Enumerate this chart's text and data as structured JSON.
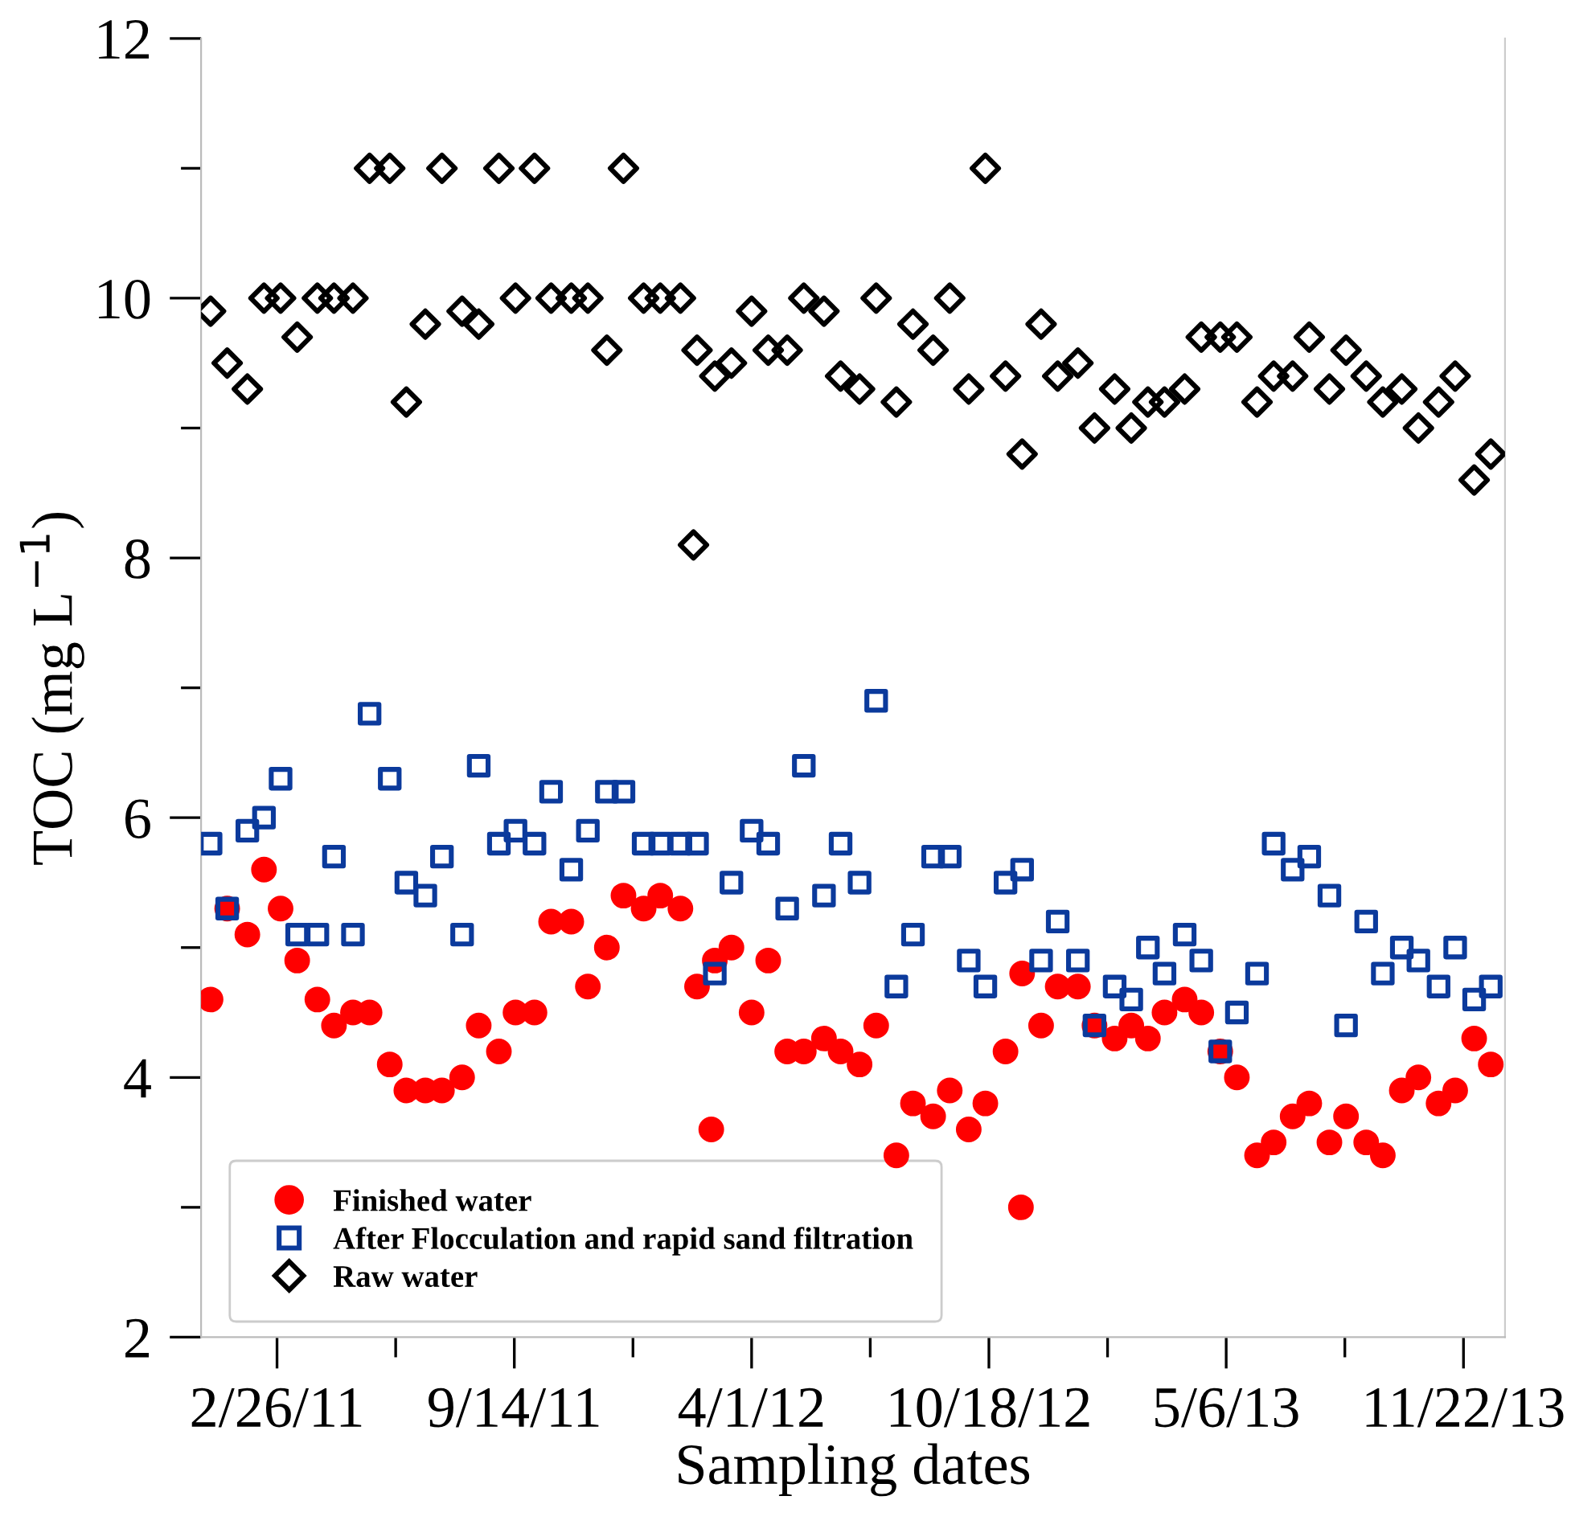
{
  "chart_data": {
    "type": "scatter",
    "xlabel": "Sampling dates",
    "ylabel": "TOC (mg L$^{−1}$)",
    "xlim": [
      "2010-12-24",
      "2013-12-27"
    ],
    "ylim": [
      2,
      12
    ],
    "xticks": [
      {
        "value": "2011-02-26",
        "label": "2/26/11"
      },
      {
        "value": "2011-06-06",
        "label": null
      },
      {
        "value": "2011-09-14",
        "label": "9/14/11"
      },
      {
        "value": "2011-12-23",
        "label": null
      },
      {
        "value": "2012-04-01",
        "label": "4/1/12"
      },
      {
        "value": "2012-07-10",
        "label": null
      },
      {
        "value": "2012-10-18",
        "label": "10/18/12"
      },
      {
        "value": "2013-01-26",
        "label": null
      },
      {
        "value": "2013-05-06",
        "label": "5/6/13"
      },
      {
        "value": "2013-08-14",
        "label": null
      },
      {
        "value": "2013-11-22",
        "label": "11/22/13"
      }
    ],
    "yticks": [
      2,
      {
        "value": 3,
        "label": null
      },
      4,
      {
        "value": 5,
        "label": null
      },
      6,
      {
        "value": 7,
        "label": null
      },
      8,
      {
        "value": 9,
        "label": null
      },
      10,
      {
        "value": 11,
        "label": null
      },
      12
    ],
    "grid": false,
    "legend": "bottom left",
    "series": [
      {
        "name": "Finished water",
        "color": "#ff0000",
        "marker": "circle",
        "x": [
          "2011-01-01",
          "2011-01-15",
          "2011-02-01",
          "2011-02-15",
          "2011-03-01",
          "2011-03-15",
          "2011-04-01",
          "2011-04-15",
          "2011-05-01",
          "2011-05-15",
          "2011-06-01",
          "2011-06-15",
          "2011-07-01",
          "2011-07-15",
          "2011-08-01",
          "2011-08-15",
          "2011-09-01",
          "2011-09-15",
          "2011-10-01",
          "2011-10-15",
          "2011-11-01",
          "2011-11-15",
          "2011-12-01",
          "2011-12-15",
          "2012-01-01",
          "2012-01-15",
          "2012-02-01",
          "2012-02-15",
          "2012-03-01",
          "2012-03-15",
          "2012-04-01",
          "2012-04-15",
          "2012-05-01",
          "2012-05-15",
          "2012-06-01",
          "2012-06-15",
          "2012-07-01",
          "2012-07-15",
          "2012-08-01",
          "2012-08-15",
          "2012-09-01",
          "2012-09-15",
          "2012-10-01",
          "2012-10-15",
          "2012-11-01",
          "2012-11-15",
          "2012-12-01",
          "2012-12-15",
          "2013-01-01",
          "2013-01-15",
          "2013-02-01",
          "2013-02-15",
          "2013-03-01",
          "2013-03-15",
          "2013-04-01",
          "2013-04-15",
          "2013-05-01",
          "2013-05-15",
          "2013-06-01",
          "2013-06-15",
          "2013-07-01",
          "2013-07-15",
          "2013-08-01",
          "2013-08-15",
          "2013-09-01",
          "2013-09-15",
          "2013-10-01",
          "2013-10-15",
          "2013-11-01",
          "2013-11-15",
          "2013-12-01",
          "2013-12-15",
          "2012-02-27",
          "2012-11-14"
        ],
        "values": [
          4.6,
          5.3,
          5.1,
          5.6,
          5.3,
          4.9,
          4.6,
          4.4,
          4.5,
          4.5,
          4.1,
          3.9,
          3.9,
          3.9,
          4.0,
          4.4,
          4.2,
          4.5,
          4.5,
          5.2,
          5.2,
          4.7,
          5.0,
          5.4,
          5.3,
          5.4,
          5.3,
          4.7,
          4.9,
          5.0,
          4.5,
          4.9,
          4.2,
          4.2,
          4.3,
          4.2,
          4.1,
          4.4,
          3.4,
          3.8,
          3.7,
          3.9,
          3.6,
          3.8,
          4.2,
          4.8,
          4.4,
          4.7,
          4.7,
          4.4,
          4.3,
          4.4,
          4.3,
          4.5,
          4.6,
          4.5,
          4.2,
          4.0,
          3.4,
          3.5,
          3.7,
          3.8,
          3.5,
          3.7,
          3.5,
          3.4,
          3.9,
          4.0,
          3.8,
          3.9,
          4.3,
          4.1,
          3.6,
          3.0
        ]
      },
      {
        "name": "After Flocculation and rapid sand filtration",
        "color": "#0b3a9c",
        "marker": "square",
        "x": [
          "2011-01-01",
          "2011-01-15",
          "2011-02-01",
          "2011-02-15",
          "2011-03-01",
          "2011-03-15",
          "2011-04-01",
          "2011-04-15",
          "2011-05-01",
          "2011-05-15",
          "2011-06-01",
          "2011-06-15",
          "2011-07-01",
          "2011-07-15",
          "2011-08-01",
          "2011-08-15",
          "2011-09-01",
          "2011-09-15",
          "2011-10-01",
          "2011-10-15",
          "2011-11-01",
          "2011-11-15",
          "2011-12-01",
          "2011-12-15",
          "2012-01-01",
          "2012-01-15",
          "2012-02-01",
          "2012-02-15",
          "2012-03-01",
          "2012-03-15",
          "2012-04-01",
          "2012-04-15",
          "2012-05-01",
          "2012-05-15",
          "2012-06-01",
          "2012-06-15",
          "2012-07-01",
          "2012-07-15",
          "2012-08-01",
          "2012-08-15",
          "2012-09-01",
          "2012-09-15",
          "2012-10-01",
          "2012-10-15",
          "2012-11-01",
          "2012-11-15",
          "2012-12-01",
          "2012-12-15",
          "2013-01-01",
          "2013-01-15",
          "2013-02-01",
          "2013-02-15",
          "2013-03-01",
          "2013-03-15",
          "2013-04-01",
          "2013-04-15",
          "2013-05-01",
          "2013-05-15",
          "2013-06-01",
          "2013-06-15",
          "2013-07-01",
          "2013-07-15",
          "2013-08-01",
          "2013-08-15",
          "2013-09-01",
          "2013-09-15",
          "2013-10-01",
          "2013-10-15",
          "2013-11-01",
          "2013-11-15",
          "2013-12-01",
          "2013-12-15"
        ],
        "values": [
          5.8,
          5.3,
          5.9,
          6.0,
          6.3,
          5.1,
          5.1,
          5.7,
          5.1,
          6.8,
          6.3,
          5.5,
          5.4,
          5.7,
          5.1,
          6.4,
          5.8,
          5.9,
          5.8,
          6.2,
          5.6,
          5.9,
          6.2,
          6.2,
          5.8,
          5.8,
          5.8,
          5.8,
          4.8,
          5.5,
          5.9,
          5.8,
          5.3,
          6.4,
          5.4,
          5.8,
          5.5,
          6.9,
          4.7,
          5.1,
          5.7,
          5.7,
          4.9,
          4.7,
          5.5,
          5.6,
          4.9,
          5.2,
          4.9,
          4.4,
          4.7,
          4.6,
          5.0,
          4.8,
          5.1,
          4.9,
          4.2,
          4.5,
          4.8,
          5.8,
          5.6,
          5.7,
          5.4,
          4.4,
          5.2,
          4.8,
          5.0,
          4.9,
          4.7,
          5.0,
          4.6,
          4.7
        ]
      },
      {
        "name": "Raw water",
        "color": "#000000",
        "marker": "diamond",
        "x": [
          "2011-01-01",
          "2011-01-15",
          "2011-02-01",
          "2011-02-15",
          "2011-03-01",
          "2011-03-15",
          "2011-04-01",
          "2011-04-15",
          "2011-05-01",
          "2011-05-15",
          "2011-06-01",
          "2011-06-15",
          "2011-07-01",
          "2011-07-15",
          "2011-08-01",
          "2011-08-15",
          "2011-09-01",
          "2011-09-15",
          "2011-10-01",
          "2011-10-15",
          "2011-11-01",
          "2011-11-15",
          "2011-12-01",
          "2011-12-15",
          "2012-01-01",
          "2012-01-15",
          "2012-02-01",
          "2012-02-15",
          "2012-03-01",
          "2012-03-15",
          "2012-04-01",
          "2012-04-15",
          "2012-05-01",
          "2012-05-15",
          "2012-06-01",
          "2012-06-15",
          "2012-07-01",
          "2012-07-15",
          "2012-08-01",
          "2012-08-15",
          "2012-09-01",
          "2012-09-15",
          "2012-10-01",
          "2012-10-15",
          "2012-11-01",
          "2012-11-15",
          "2012-12-01",
          "2012-12-15",
          "2013-01-01",
          "2013-01-15",
          "2013-02-01",
          "2013-02-15",
          "2013-03-01",
          "2013-03-15",
          "2013-04-01",
          "2013-04-15",
          "2013-05-01",
          "2013-05-15",
          "2013-06-01",
          "2013-06-15",
          "2013-07-01",
          "2013-07-15",
          "2013-08-01",
          "2013-08-15",
          "2013-09-01",
          "2013-09-15",
          "2013-10-01",
          "2013-10-15",
          "2013-11-01",
          "2013-11-15",
          "2013-12-01",
          "2013-12-15",
          "2012-02-12"
        ],
        "values": [
          9.9,
          9.5,
          9.3,
          10.0,
          10.0,
          9.7,
          10.0,
          10.0,
          10.0,
          11.0,
          11.0,
          9.2,
          9.8,
          11.0,
          9.9,
          9.8,
          11.0,
          10.0,
          11.0,
          10.0,
          10.0,
          10.0,
          9.6,
          11.0,
          10.0,
          10.0,
          10.0,
          9.6,
          9.4,
          9.5,
          9.9,
          9.6,
          9.6,
          10.0,
          9.9,
          9.4,
          9.3,
          10.0,
          9.2,
          9.8,
          9.6,
          10.0,
          9.3,
          11.0,
          9.4,
          8.8,
          9.8,
          9.4,
          9.5,
          9.0,
          9.3,
          9.0,
          9.2,
          9.2,
          9.3,
          9.7,
          9.7,
          9.7,
          9.2,
          9.4,
          9.4,
          9.7,
          9.3,
          9.6,
          9.4,
          9.2,
          9.3,
          9.0,
          9.2,
          9.4,
          8.6,
          8.8,
          8.1
        ]
      }
    ]
  }
}
